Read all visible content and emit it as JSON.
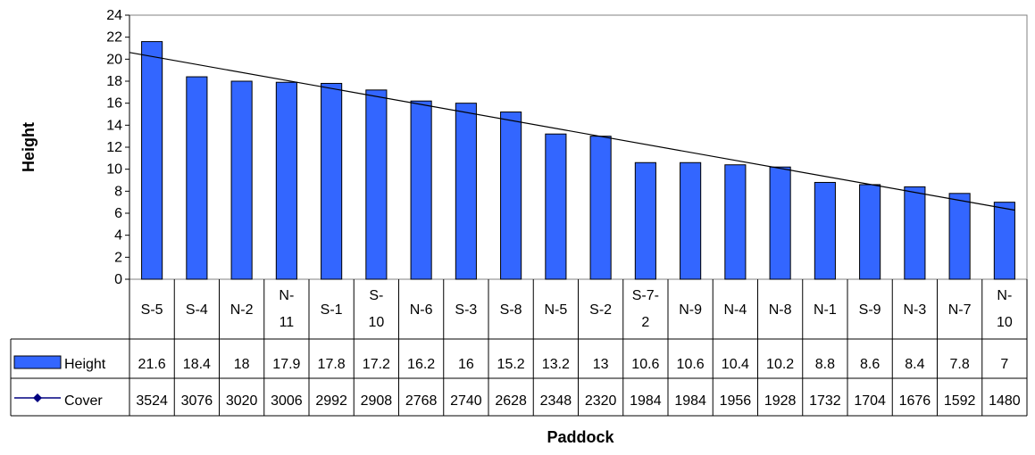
{
  "chart_data": {
    "type": "bar",
    "xlabel": "Paddock",
    "ylabel": "Height",
    "ylim": [
      0,
      24
    ],
    "yticks": [
      "0",
      "2",
      "4",
      "6",
      "8",
      "10",
      "12",
      "14",
      "16",
      "18",
      "20",
      "22",
      "24"
    ],
    "categories": [
      [
        "S-5"
      ],
      [
        "S-4"
      ],
      [
        "N-2"
      ],
      [
        "N-",
        "11"
      ],
      [
        "S-1"
      ],
      [
        "S-",
        "10"
      ],
      [
        "N-6"
      ],
      [
        "S-3"
      ],
      [
        "S-8"
      ],
      [
        "N-5"
      ],
      [
        "S-2"
      ],
      [
        "S-7-",
        "2"
      ],
      [
        "N-9"
      ],
      [
        "N-4"
      ],
      [
        "N-8"
      ],
      [
        "N-1"
      ],
      [
        "S-9"
      ],
      [
        "N-3"
      ],
      [
        "N-7"
      ],
      [
        "N-",
        "10"
      ]
    ],
    "series": [
      {
        "name": "Height",
        "type": "bar",
        "color": "#3366FF",
        "values": [
          21.6,
          18.4,
          18,
          17.9,
          17.8,
          17.2,
          16.2,
          16,
          15.2,
          13.2,
          13,
          10.6,
          10.6,
          10.4,
          10.2,
          8.8,
          8.6,
          8.4,
          7.8,
          7
        ],
        "labels": [
          "21.6",
          "18.4",
          "18",
          "17.9",
          "17.8",
          "17.2",
          "16.2",
          "16",
          "15.2",
          "13.2",
          "13",
          "10.6",
          "10.6",
          "10.4",
          "10.2",
          "8.8",
          "8.6",
          "8.4",
          "7.8",
          "7"
        ]
      },
      {
        "name": "Cover",
        "type": "line",
        "color": "#000080",
        "values": [
          3524,
          3076,
          3020,
          3006,
          2992,
          2908,
          2768,
          2740,
          2628,
          2348,
          2320,
          1984,
          1984,
          1956,
          1928,
          1732,
          1704,
          1676,
          1592,
          1480
        ],
        "labels": [
          "3524",
          "3076",
          "3020",
          "3006",
          "2992",
          "2908",
          "2768",
          "2740",
          "2628",
          "2348",
          "2320",
          "1984",
          "1984",
          "1956",
          "1928",
          "1732",
          "1704",
          "1676",
          "1592",
          "1480"
        ]
      }
    ],
    "trendline": {
      "series": "Height",
      "type": "linear",
      "color": "#000000"
    },
    "grid": false,
    "legend": "data-table"
  }
}
